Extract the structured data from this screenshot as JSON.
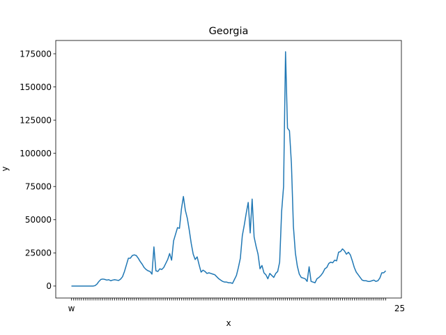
{
  "chart_data": {
    "type": "line",
    "title": "Georgia",
    "xlabel": "x",
    "ylabel": "y",
    "ylim": [
      -9000,
      185000
    ],
    "yticks": [
      0,
      25000,
      50000,
      75000,
      100000,
      125000,
      150000,
      175000
    ],
    "ytick_labels": [
      "0",
      "25000",
      "50000",
      "75000",
      "100000",
      "125000",
      "150000",
      "175000"
    ],
    "grid": false,
    "legend": "none",
    "line_color": "#1f77b4",
    "x_first_label": "w",
    "x_last_label": "25",
    "series": [
      {
        "values": [
          0,
          0,
          0,
          0,
          0,
          0,
          0,
          0,
          0,
          0,
          0,
          0,
          300,
          1500,
          3500,
          5000,
          5300,
          5000,
          4500,
          4800,
          4000,
          4500,
          4800,
          4500,
          4200,
          5200,
          7000,
          11000,
          16000,
          21000,
          21000,
          23000,
          23500,
          23000,
          21000,
          18500,
          16500,
          14000,
          12500,
          11500,
          11000,
          9000,
          29500,
          11500,
          11000,
          13000,
          12500,
          14000,
          17000,
          20000,
          24500,
          19500,
          34000,
          39000,
          44000,
          43500,
          58000,
          67500,
          57000,
          51000,
          42000,
          32000,
          24000,
          20000,
          22000,
          16000,
          10500,
          12000,
          11000,
          9500,
          10000,
          9500,
          9000,
          8500,
          7000,
          5500,
          4500,
          3500,
          3000,
          3000,
          2500,
          2500,
          2000,
          5000,
          8000,
          14000,
          21000,
          38000,
          46000,
          55000,
          63000,
          40000,
          65500,
          37000,
          30000,
          24000,
          13000,
          15500,
          10000,
          8500,
          5500,
          9500,
          8000,
          6500,
          9500,
          11000,
          18000,
          56000,
          75000,
          176500,
          119000,
          117000,
          92000,
          45000,
          25000,
          15000,
          9000,
          6500,
          6000,
          5500,
          3500,
          14500,
          3500,
          3000,
          2500,
          5500,
          6500,
          8000,
          10000,
          13000,
          14000,
          17000,
          18000,
          17500,
          19500,
          19000,
          25500,
          26000,
          28000,
          26500,
          24000,
          25500,
          23500,
          19000,
          14000,
          10500,
          8500,
          6500,
          4500,
          4000,
          4000,
          3500,
          3500,
          4000,
          4500,
          3500,
          4000,
          6000,
          10000,
          10000,
          11500
        ]
      }
    ]
  }
}
